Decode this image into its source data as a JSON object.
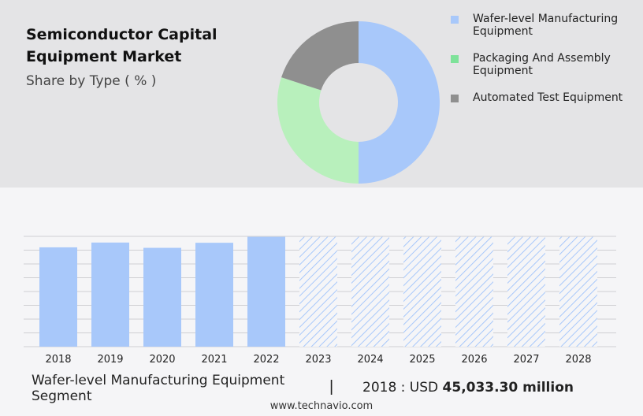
{
  "header": {
    "title_line1": "Semiconductor Capital",
    "title_line2": "Equipment Market",
    "subtitle": "Share by Type ( % )"
  },
  "legend": [
    {
      "label": "Wafer-level Manufacturing Equipment",
      "color": "#a8c8fa"
    },
    {
      "label": "Packaging And Assembly Equipment",
      "color": "#7ee29a"
    },
    {
      "label": "Automated Test Equipment",
      "color": "#8f8f8f"
    }
  ],
  "chart_data": [
    {
      "type": "pie",
      "variant": "donut",
      "categories": [
        "Wafer-level Manufacturing Equipment",
        "Packaging And Assembly Equipment",
        "Automated Test Equipment"
      ],
      "values": [
        50,
        30,
        20
      ],
      "colors": [
        "#a8c8fa",
        "#b8f0bc",
        "#8f8f8f"
      ]
    },
    {
      "type": "bar",
      "categories": [
        "2018",
        "2019",
        "2020",
        "2021",
        "2022",
        "2023",
        "2024",
        "2025",
        "2026",
        "2027",
        "2028"
      ],
      "values": [
        45033.3,
        47200,
        44800,
        47100,
        49800,
        49800,
        49800,
        49800,
        49800,
        49800,
        49800
      ],
      "forecast_from": "2023",
      "ylim": [
        0,
        50000
      ],
      "grid": true,
      "color": "#a8c8fa"
    }
  ],
  "footer": {
    "segment": "Wafer-level Manufacturing Equipment Segment",
    "separator": "|",
    "value_prefix": "2018 : USD",
    "value": "45,033.30 million",
    "site": "www.technavio.com"
  }
}
